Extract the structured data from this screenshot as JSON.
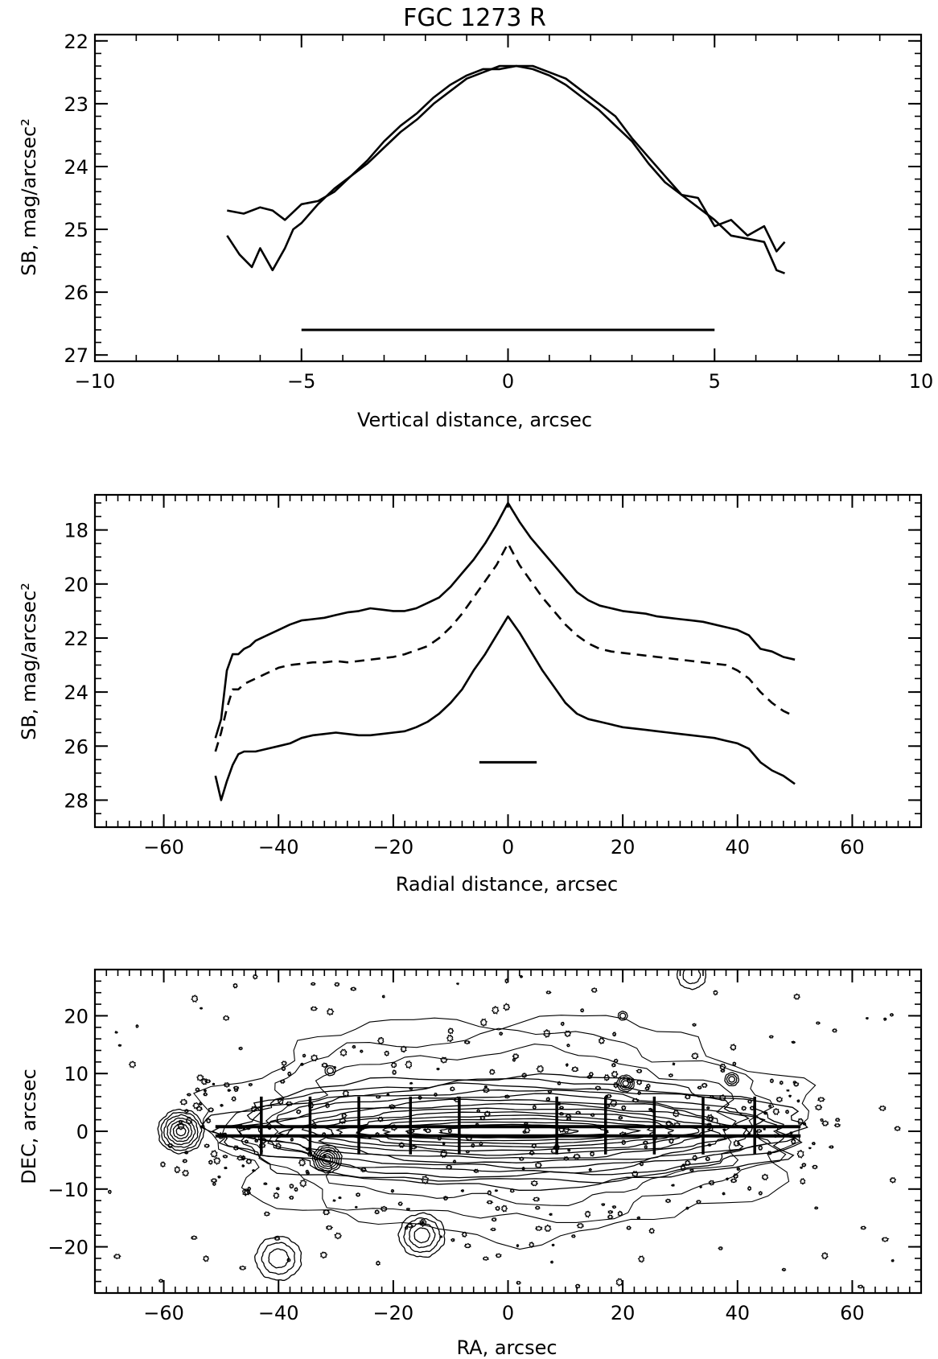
{
  "figure_title": "FGC 1273 R",
  "chart_data": [
    {
      "type": "line",
      "xlabel": "Vertical distance, arcsec",
      "ylabel": "SB, mag/arcsec²",
      "xlim": [
        -10,
        10
      ],
      "ylim": [
        27.1,
        21.9
      ],
      "y_inverted": true,
      "xticks": [
        "−10",
        "−5",
        "0",
        "5",
        "10"
      ],
      "yticks": [
        "22",
        "23",
        "24",
        "25",
        "26",
        "27"
      ],
      "series": [
        {
          "style": "solid",
          "x": [
            -6.8,
            -6.5,
            -6.2,
            -6.0,
            -5.7,
            -5.4,
            -5.2,
            -5.0,
            -4.6,
            -4.2,
            -3.8,
            -3.4,
            -3.0,
            -2.6,
            -2.2,
            -1.8,
            -1.4,
            -1.0,
            -0.6,
            -0.2,
            0.2,
            0.6,
            1.0,
            1.4,
            1.8,
            2.2,
            2.6,
            3.0,
            3.4,
            3.8,
            4.2,
            4.6,
            5.0,
            5.4,
            5.8,
            6.2,
            6.5,
            6.7
          ],
          "y": [
            25.1,
            25.4,
            25.6,
            25.3,
            25.65,
            25.3,
            25.0,
            24.9,
            24.6,
            24.35,
            24.15,
            23.9,
            23.6,
            23.35,
            23.15,
            22.9,
            22.7,
            22.55,
            22.45,
            22.45,
            22.4,
            22.45,
            22.55,
            22.7,
            22.9,
            23.1,
            23.35,
            23.6,
            23.95,
            24.25,
            24.45,
            24.65,
            24.85,
            25.1,
            25.15,
            25.2,
            25.65,
            25.7
          ]
        },
        {
          "style": "solid",
          "x": [
            -6.8,
            -6.4,
            -6.0,
            -5.7,
            -5.4,
            -5.0,
            -4.6,
            -4.2,
            -3.8,
            -3.4,
            -3.0,
            -2.6,
            -2.2,
            -1.8,
            -1.4,
            -1.0,
            -0.6,
            -0.2,
            0.2,
            0.6,
            1.0,
            1.4,
            1.8,
            2.2,
            2.6,
            3.0,
            3.4,
            3.8,
            4.2,
            4.6,
            5.0,
            5.4,
            5.8,
            6.2,
            6.5,
            6.7
          ],
          "y": [
            24.7,
            24.75,
            24.65,
            24.7,
            24.85,
            24.6,
            24.55,
            24.4,
            24.15,
            23.95,
            23.7,
            23.45,
            23.25,
            23.0,
            22.8,
            22.6,
            22.5,
            22.4,
            22.4,
            22.4,
            22.5,
            22.6,
            22.8,
            23.0,
            23.2,
            23.55,
            23.85,
            24.15,
            24.45,
            24.5,
            24.95,
            24.85,
            25.1,
            24.95,
            25.35,
            25.2
          ]
        }
      ],
      "scale_bar": {
        "x": [
          -5,
          5
        ],
        "y": 26.6
      }
    },
    {
      "type": "line",
      "xlabel": "Radial distance, arcsec",
      "ylabel": "SB, mag/arcsec²",
      "xlim": [
        -72,
        72
      ],
      "ylim": [
        29.0,
        16.7
      ],
      "y_inverted": true,
      "xticks": [
        "−60",
        "−40",
        "−20",
        "0",
        "20",
        "40",
        "60"
      ],
      "yticks": [
        "18",
        "20",
        "22",
        "24",
        "26",
        "28"
      ],
      "series": [
        {
          "style": "solid",
          "x": [
            -51,
            -50,
            -49,
            -48,
            -47,
            -46,
            -45,
            -44,
            -42,
            -40,
            -38,
            -36,
            -34,
            -32,
            -30,
            -28,
            -26,
            -24,
            -22,
            -20,
            -18,
            -16,
            -14,
            -12,
            -10,
            -8,
            -6,
            -4,
            -2,
            0,
            2,
            4,
            6,
            8,
            10,
            12,
            14,
            16,
            18,
            20,
            22,
            24,
            26,
            28,
            30,
            32,
            34,
            36,
            38,
            40,
            42,
            44,
            46,
            48,
            50
          ],
          "y": [
            25.7,
            25.0,
            23.2,
            22.6,
            22.6,
            22.4,
            22.3,
            22.1,
            21.9,
            21.7,
            21.5,
            21.35,
            21.3,
            21.25,
            21.15,
            21.05,
            21.0,
            20.9,
            20.95,
            21.0,
            21.0,
            20.9,
            20.7,
            20.5,
            20.1,
            19.6,
            19.1,
            18.5,
            17.8,
            17.0,
            17.7,
            18.3,
            18.8,
            19.3,
            19.8,
            20.3,
            20.6,
            20.8,
            20.9,
            21.0,
            21.05,
            21.1,
            21.2,
            21.25,
            21.3,
            21.35,
            21.4,
            21.5,
            21.6,
            21.7,
            21.9,
            22.4,
            22.5,
            22.7,
            22.8
          ]
        },
        {
          "style": "dashed",
          "x": [
            -51,
            -50,
            -49,
            -48,
            -47,
            -46,
            -44,
            -42,
            -40,
            -38,
            -36,
            -34,
            -32,
            -30,
            -28,
            -26,
            -24,
            -22,
            -20,
            -18,
            -16,
            -14,
            -12,
            -10,
            -8,
            -6,
            -4,
            -2,
            0,
            2,
            4,
            6,
            8,
            10,
            12,
            14,
            16,
            18,
            20,
            22,
            24,
            26,
            28,
            30,
            32,
            34,
            36,
            38,
            40,
            42,
            44,
            46,
            48,
            50
          ],
          "y": [
            26.2,
            25.5,
            24.6,
            23.9,
            23.9,
            23.7,
            23.5,
            23.3,
            23.1,
            23.0,
            22.95,
            22.9,
            22.9,
            22.85,
            22.9,
            22.85,
            22.8,
            22.75,
            22.7,
            22.6,
            22.45,
            22.3,
            22.0,
            21.6,
            21.1,
            20.5,
            19.9,
            19.3,
            18.5,
            19.3,
            19.9,
            20.5,
            21.0,
            21.5,
            21.9,
            22.2,
            22.4,
            22.5,
            22.55,
            22.6,
            22.65,
            22.7,
            22.75,
            22.8,
            22.85,
            22.9,
            22.95,
            23.0,
            23.2,
            23.5,
            24.0,
            24.4,
            24.7,
            24.9
          ]
        },
        {
          "style": "solid",
          "x": [
            -51,
            -50,
            -49,
            -48,
            -47,
            -46,
            -44,
            -42,
            -40,
            -38,
            -36,
            -34,
            -32,
            -30,
            -28,
            -26,
            -24,
            -22,
            -20,
            -18,
            -16,
            -14,
            -12,
            -10,
            -8,
            -6,
            -4,
            -2,
            0,
            2,
            4,
            6,
            8,
            10,
            12,
            14,
            16,
            18,
            20,
            22,
            24,
            26,
            28,
            30,
            32,
            34,
            36,
            38,
            40,
            42,
            44,
            46,
            48,
            50
          ],
          "y": [
            27.1,
            28.0,
            27.3,
            26.7,
            26.3,
            26.2,
            26.2,
            26.1,
            26.0,
            25.9,
            25.7,
            25.6,
            25.55,
            25.5,
            25.55,
            25.6,
            25.6,
            25.55,
            25.5,
            25.45,
            25.3,
            25.1,
            24.8,
            24.4,
            23.9,
            23.2,
            22.6,
            21.9,
            21.2,
            21.8,
            22.5,
            23.2,
            23.8,
            24.4,
            24.8,
            25.0,
            25.1,
            25.2,
            25.3,
            25.35,
            25.4,
            25.45,
            25.5,
            25.55,
            25.6,
            25.65,
            25.7,
            25.8,
            25.9,
            26.1,
            26.6,
            26.9,
            27.1,
            27.4
          ]
        }
      ],
      "scale_bar": {
        "x": [
          -5,
          5
        ],
        "y": 26.6
      }
    },
    {
      "type": "contour",
      "xlabel": "RA, arcsec",
      "ylabel": "DEC, arcsec",
      "xlim": [
        -72,
        72
      ],
      "ylim": [
        -28,
        28
      ],
      "xticks": [
        "−60",
        "−40",
        "−20",
        "0",
        "20",
        "40",
        "60"
      ],
      "yticks": [
        "−20",
        "−10",
        "0",
        "10",
        "20"
      ],
      "galaxy": {
        "center": [
          0,
          0
        ],
        "major_extent_arcsec": 51,
        "minor_extent_arcsec": 9,
        "levels": 14
      },
      "profile_cuts_x": [
        -43,
        -34.5,
        -26,
        -17,
        -8.5,
        8.5,
        17,
        25.5,
        34,
        43
      ],
      "horizontal_lines_y": [
        -0.8,
        0.8
      ],
      "stars": [
        {
          "x": -57,
          "y": 0,
          "r": 4,
          "levels": 7
        },
        {
          "x": -31.5,
          "y": -4.8,
          "r": 2.5,
          "levels": 6
        },
        {
          "x": -40,
          "y": -22,
          "r": 4,
          "levels": 3
        },
        {
          "x": -15,
          "y": -18,
          "r": 4,
          "levels": 4
        },
        {
          "x": 20.5,
          "y": 8.3,
          "r": 1.5,
          "levels": 4
        },
        {
          "x": 39,
          "y": 9,
          "r": 1.2,
          "levels": 3
        },
        {
          "x": 32,
          "y": 27,
          "r": 2.5,
          "levels": 2
        },
        {
          "x": -31,
          "y": 10.5,
          "r": 0.9,
          "levels": 2
        },
        {
          "x": 20,
          "y": 20,
          "r": 0.8,
          "levels": 2
        }
      ]
    }
  ]
}
